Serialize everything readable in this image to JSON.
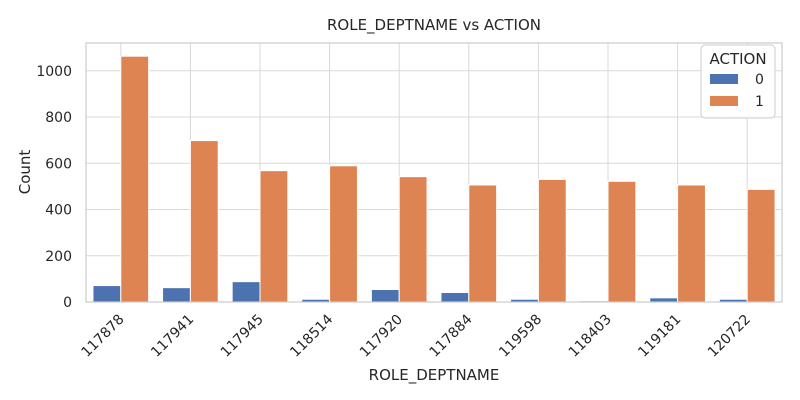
{
  "chart_data": {
    "type": "bar",
    "title": "ROLE_DEPTNAME vs ACTION",
    "xlabel": "ROLE_DEPTNAME",
    "ylabel": "Count",
    "categories": [
      "117878",
      "117941",
      "117945",
      "118514",
      "117920",
      "117884",
      "119598",
      "118403",
      "119181",
      "120722"
    ],
    "series": [
      {
        "name": "0",
        "color": "#4c72b0",
        "values": [
          71,
          62,
          88,
          12,
          54,
          41,
          12,
          5,
          18,
          12
        ]
      },
      {
        "name": "1",
        "color": "#dd8452",
        "values": [
          1063,
          698,
          568,
          589,
          542,
          506,
          530,
          522,
          506,
          487
        ]
      }
    ],
    "ylim": [
      0,
      1120
    ],
    "yticks": [
      0,
      200,
      400,
      600,
      800,
      1000
    ],
    "legend": {
      "title": "ACTION",
      "placement": "top-right"
    },
    "grid": true
  }
}
